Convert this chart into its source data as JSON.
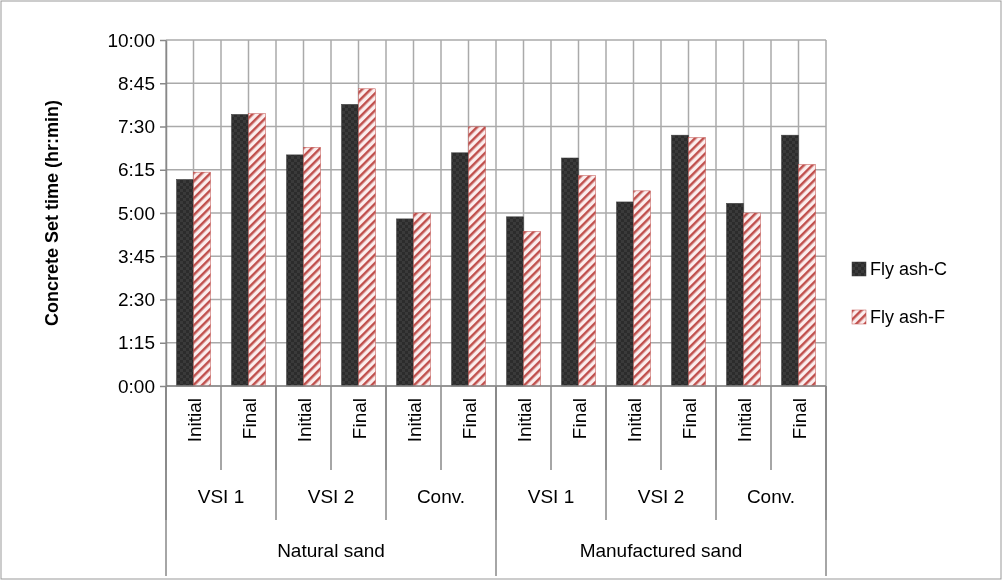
{
  "chart_data": {
    "type": "bar",
    "ylabel": "Concrete  Set time (hr:min)",
    "categories": [
      "Initial",
      "Final",
      "Initial",
      "Final",
      "Initial",
      "Final",
      "Initial",
      "Final",
      "Initial",
      "Final",
      "Initial",
      "Final"
    ],
    "series": [
      {
        "name": "Fly ash-C",
        "color": "#3a3a3a",
        "values": [
          5.97,
          7.85,
          6.68,
          8.14,
          4.83,
          6.74,
          4.89,
          6.59,
          5.32,
          7.25,
          5.28,
          7.25
        ]
      },
      {
        "name": "Fly ash-F",
        "color": "#c0504d",
        "values": [
          6.18,
          7.87,
          6.9,
          8.59,
          5.0,
          7.49,
          4.47,
          6.08,
          5.64,
          7.18,
          5.0,
          6.4
        ]
      }
    ],
    "ylim": [
      0,
      10
    ],
    "yticks": [
      {
        "value": 0,
        "label": "0:00"
      },
      {
        "value": 1.25,
        "label": "1:15"
      },
      {
        "value": 2.5,
        "label": "2:30"
      },
      {
        "value": 3.75,
        "label": "3:45"
      },
      {
        "value": 5,
        "label": "5:00"
      },
      {
        "value": 6.25,
        "label": "6:15"
      },
      {
        "value": 7.5,
        "label": "7:30"
      },
      {
        "value": 8.75,
        "label": "8:45"
      },
      {
        "value": 10,
        "label": "10:00"
      }
    ],
    "annotations": [
      "VSI 1",
      "VSI 2",
      "Conv.",
      "VSI 1",
      "VSI 2",
      "Conv.",
      "Natural sand",
      "Manufactured sand"
    ],
    "grid": true,
    "legend": "right"
  }
}
